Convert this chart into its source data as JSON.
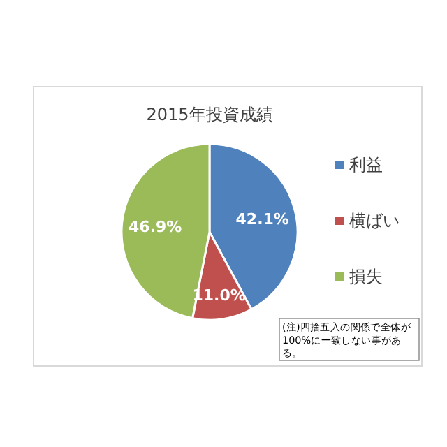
{
  "chart_data": {
    "type": "pie",
    "title": "2015年投資成績",
    "categories": [
      "利益",
      "横ばい",
      "損失"
    ],
    "values": [
      42.1,
      11.0,
      46.9
    ],
    "colors": [
      "#4f81bd",
      "#c0504d",
      "#9bbb59"
    ],
    "data_labels": true,
    "value_labels": [
      "42.1%",
      "11.0%",
      "46.9%"
    ],
    "legend": "right",
    "annotations": [
      "(注)四捨五入の関係で全体が100%に一致しない事がある。"
    ]
  }
}
